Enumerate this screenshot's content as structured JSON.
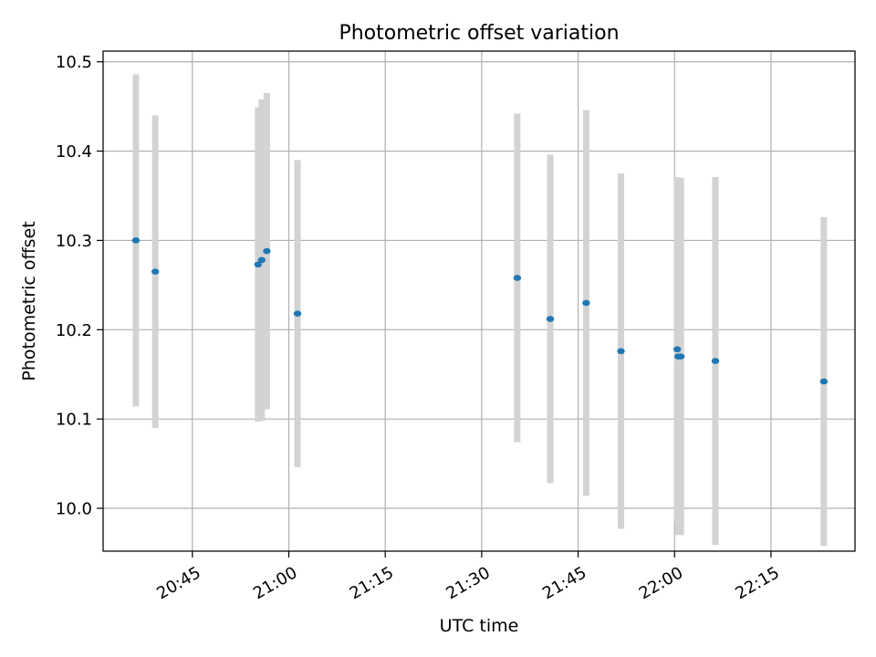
{
  "chart_data": {
    "type": "scatter",
    "title": "Photometric offset variation",
    "xlabel": "UTC time",
    "ylabel": "Photometric offset",
    "x_tick_labels": [
      "20:45",
      "21:00",
      "21:15",
      "21:30",
      "21:45",
      "22:00",
      "22:15"
    ],
    "y_tick_labels": [
      "10.0",
      "10.1",
      "10.2",
      "10.3",
      "10.4",
      "10.5"
    ],
    "y_ticks": [
      10.0,
      10.1,
      10.2,
      10.3,
      10.4,
      10.5
    ],
    "xlim": [
      "20:31:07",
      "22:28:04"
    ],
    "ylim": [
      9.952,
      10.512
    ],
    "grid": true,
    "point_color": "#1f77b4",
    "errorbar_color": "#d3d3d3",
    "points": [
      {
        "x": "20:36:13",
        "y": 10.3,
        "yerr": 0.186
      },
      {
        "x": "20:39:14",
        "y": 10.265,
        "yerr": 0.175
      },
      {
        "x": "20:55:13",
        "y": 10.273,
        "yerr": 0.176
      },
      {
        "x": "20:55:47",
        "y": 10.278,
        "yerr": 0.18
      },
      {
        "x": "20:56:35",
        "y": 10.288,
        "yerr": 0.177
      },
      {
        "x": "21:01:21",
        "y": 10.218,
        "yerr": 0.172
      },
      {
        "x": "21:35:32",
        "y": 10.258,
        "yerr": 0.184
      },
      {
        "x": "21:40:40",
        "y": 10.212,
        "yerr": 0.184
      },
      {
        "x": "21:46:15",
        "y": 10.23,
        "yerr": 0.216
      },
      {
        "x": "21:51:40",
        "y": 10.176,
        "yerr": 0.199
      },
      {
        "x": "22:00:25",
        "y": 10.178,
        "yerr": 0.193
      },
      {
        "x": "22:00:34",
        "y": 10.17,
        "yerr": 0.2
      },
      {
        "x": "22:00:59",
        "y": 10.17,
        "yerr": 0.2
      },
      {
        "x": "22:06:21",
        "y": 10.165,
        "yerr": 0.206
      },
      {
        "x": "22:23:13",
        "y": 10.142,
        "yerr": 0.184
      }
    ]
  }
}
